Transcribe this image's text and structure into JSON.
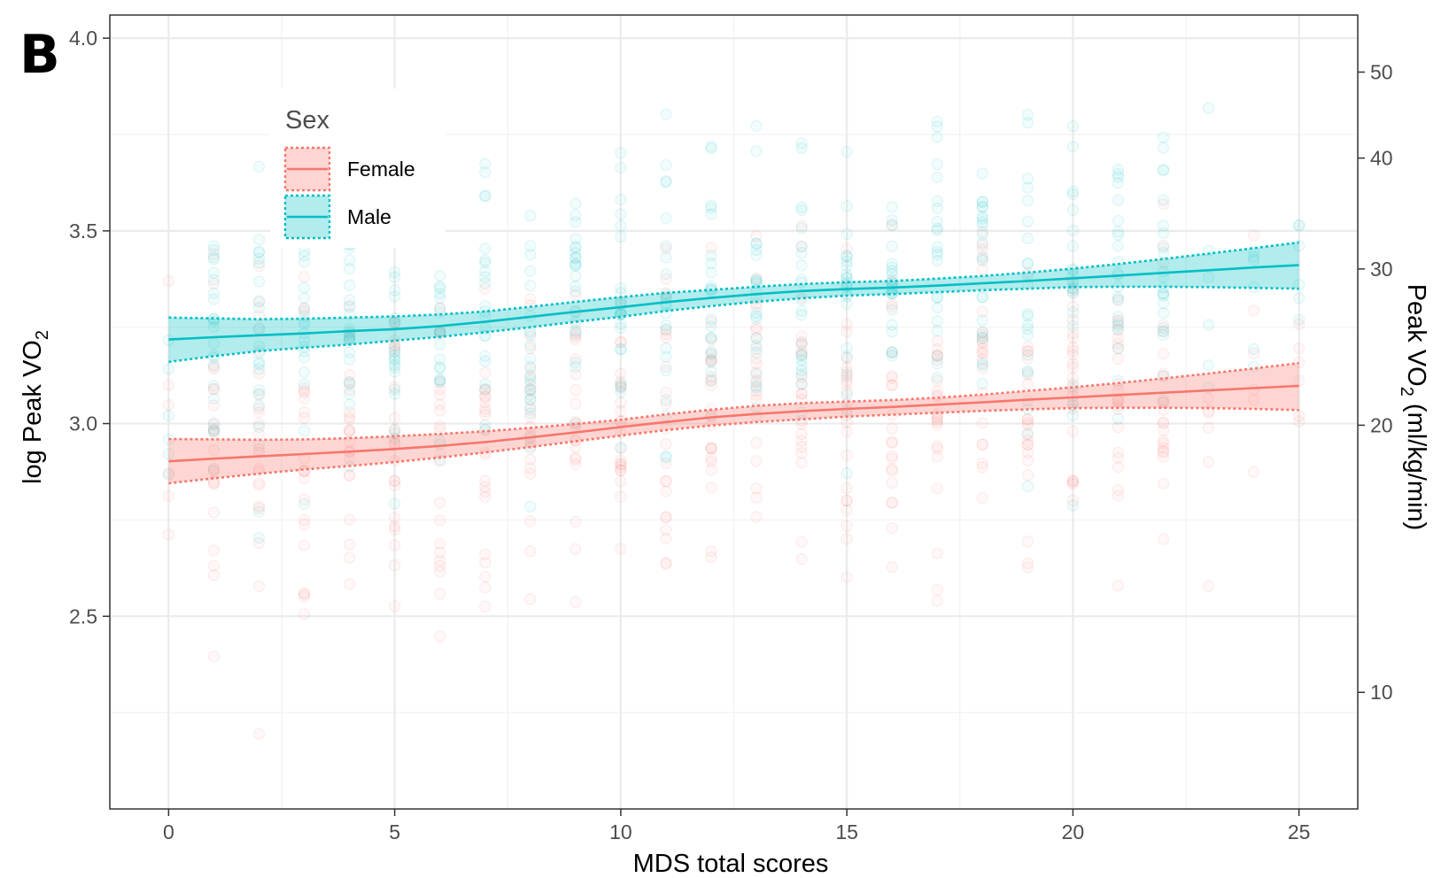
{
  "panel_label": "B",
  "chart_data": {
    "type": "line",
    "title": "",
    "xlabel": "MDS total scores",
    "ylabel": "log Peak VO",
    "ylabel_sub": "2",
    "y2label_prefix": "Peak VO",
    "y2label_sub": "2",
    "y2label_suffix": " (ml/kg/min)",
    "xlim": [
      -1.3,
      26.3
    ],
    "ylim": [
      2.0,
      4.06
    ],
    "x_ticks": [
      0,
      5,
      10,
      15,
      20,
      25
    ],
    "y_ticks": [
      2.5,
      3.0,
      3.5,
      4.0
    ],
    "y_tick_labels": [
      "2.5",
      "3.0",
      "3.5",
      "4.0"
    ],
    "y2_ticks": [
      10,
      20,
      30,
      40,
      50
    ],
    "y2_scale": "log",
    "grid": true,
    "legend": {
      "title": "Sex",
      "position": "top-left"
    },
    "colors": {
      "Female": "#F8766D",
      "Male": "#00BFC4"
    },
    "series": [
      {
        "name": "Female",
        "x": [
          0,
          1,
          2,
          3,
          4,
          5,
          6,
          7,
          8,
          9,
          10,
          11,
          12,
          13,
          14,
          15,
          16,
          17,
          18,
          19,
          20,
          21,
          22,
          23,
          24,
          25
        ],
        "y": [
          2.902,
          2.909,
          2.915,
          2.921,
          2.927,
          2.934,
          2.942,
          2.952,
          2.964,
          2.977,
          2.991,
          3.004,
          3.016,
          3.025,
          3.032,
          3.038,
          3.043,
          3.049,
          3.055,
          3.062,
          3.068,
          3.074,
          3.08,
          3.086,
          3.092,
          3.098
        ],
        "lower": [
          2.845,
          2.858,
          2.87,
          2.881,
          2.89,
          2.9,
          2.912,
          2.925,
          2.939,
          2.954,
          2.969,
          2.983,
          2.995,
          3.004,
          3.011,
          3.018,
          3.023,
          3.028,
          3.033,
          3.037,
          3.04,
          3.041,
          3.041,
          3.04,
          3.038,
          3.035
        ],
        "upper": [
          2.96,
          2.959,
          2.958,
          2.959,
          2.962,
          2.967,
          2.973,
          2.98,
          2.989,
          2.999,
          3.01,
          3.024,
          3.036,
          3.046,
          3.053,
          3.057,
          3.061,
          3.067,
          3.075,
          3.085,
          3.094,
          3.105,
          3.117,
          3.13,
          3.143,
          3.157
        ]
      },
      {
        "name": "Male",
        "x": [
          0,
          1,
          2,
          3,
          4,
          5,
          6,
          7,
          8,
          9,
          10,
          11,
          12,
          13,
          14,
          15,
          16,
          17,
          18,
          19,
          20,
          21,
          22,
          23,
          24,
          25
        ],
        "y": [
          3.218,
          3.224,
          3.229,
          3.234,
          3.24,
          3.245,
          3.253,
          3.264,
          3.277,
          3.29,
          3.302,
          3.315,
          3.326,
          3.336,
          3.344,
          3.349,
          3.353,
          3.358,
          3.364,
          3.37,
          3.377,
          3.384,
          3.391,
          3.398,
          3.405,
          3.411
        ],
        "lower": [
          3.16,
          3.175,
          3.188,
          3.197,
          3.205,
          3.215,
          3.225,
          3.237,
          3.25,
          3.264,
          3.277,
          3.292,
          3.305,
          3.316,
          3.325,
          3.332,
          3.336,
          3.341,
          3.346,
          3.35,
          3.354,
          3.355,
          3.355,
          3.354,
          3.352,
          3.35
        ],
        "upper": [
          3.275,
          3.273,
          3.271,
          3.272,
          3.275,
          3.278,
          3.283,
          3.291,
          3.303,
          3.316,
          3.328,
          3.339,
          3.347,
          3.355,
          3.362,
          3.367,
          3.37,
          3.376,
          3.383,
          3.392,
          3.402,
          3.414,
          3.427,
          3.441,
          3.455,
          3.47
        ]
      }
    ]
  }
}
